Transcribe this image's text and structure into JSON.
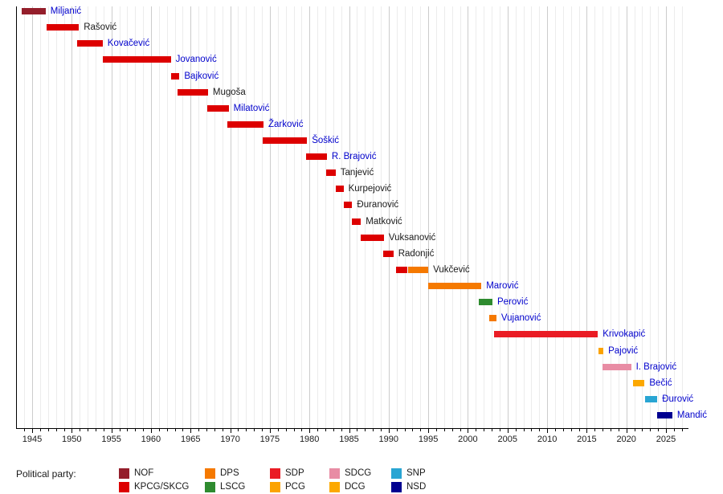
{
  "page": {
    "background": "#ffffff"
  },
  "legend": {
    "title": "Political party:",
    "columns": [
      {
        "items": [
          {
            "label": "NOF",
            "party": "NOF"
          },
          {
            "label": "KPCG/SKCG",
            "party": "KPCG/SKCG"
          }
        ]
      },
      {
        "items": [
          {
            "label": "DPS",
            "party": "DPS"
          },
          {
            "label": "LSCG",
            "party": "LSCG"
          }
        ]
      },
      {
        "items": [
          {
            "label": "SDP",
            "party": "SDP"
          },
          {
            "label": "PCG",
            "party": "PCG"
          }
        ]
      },
      {
        "items": [
          {
            "label": "SDCG",
            "party": "SDCG"
          },
          {
            "label": "DCG",
            "party": "DCG"
          }
        ]
      },
      {
        "items": [
          {
            "label": "SNP",
            "party": "SNP"
          },
          {
            "label": "NSD",
            "party": "NSD"
          }
        ]
      }
    ]
  },
  "chart_data": {
    "type": "bar",
    "subtype": "gantt-timeline",
    "title": "",
    "xlabel": "",
    "ylabel": "",
    "x_axis": {
      "min": 1943,
      "max": 2027.8,
      "major_ticks": [
        1945,
        1950,
        1955,
        1960,
        1965,
        1970,
        1975,
        1980,
        1985,
        1990,
        1995,
        2000,
        2005,
        2010,
        2015,
        2020,
        2025
      ],
      "minor_tick_interval": 1,
      "grid": true
    },
    "party_colors": {
      "NOF": "#941e2b",
      "KPCG/SKCG": "#dd0000",
      "DPS": "#f57900",
      "LSCG": "#2e8b2f",
      "SDP": "#ea1c24",
      "PCG": "#fba300",
      "SDCG": "#e88ca4",
      "DCG": "#fca800",
      "SNP": "#29a5d3",
      "NSD": "#000090"
    },
    "label_colors": {
      "blue": "#0000cc",
      "black": "#1a1a1a"
    },
    "rows": [
      {
        "name": "Miljanić",
        "label_color": "blue",
        "segments": [
          {
            "party": "NOF",
            "start": 1943.7,
            "end": 1946.7
          }
        ]
      },
      {
        "name": "Rašović",
        "label_color": "black",
        "segments": [
          {
            "party": "KPCG/SKCG",
            "start": 1946.8,
            "end": 1950.9
          }
        ]
      },
      {
        "name": "Kovačević",
        "label_color": "blue",
        "segments": [
          {
            "party": "KPCG/SKCG",
            "start": 1950.7,
            "end": 1953.9
          }
        ]
      },
      {
        "name": "Jovanović",
        "label_color": "blue",
        "segments": [
          {
            "party": "KPCG/SKCG",
            "start": 1953.9,
            "end": 1962.5
          }
        ]
      },
      {
        "name": "Bajković",
        "label_color": "blue",
        "segments": [
          {
            "party": "KPCG/SKCG",
            "start": 1962.5,
            "end": 1963.6
          }
        ]
      },
      {
        "name": "Mugoša",
        "label_color": "black",
        "segments": [
          {
            "party": "KPCG/SKCG",
            "start": 1963.3,
            "end": 1967.2
          }
        ]
      },
      {
        "name": "Milatović",
        "label_color": "blue",
        "segments": [
          {
            "party": "KPCG/SKCG",
            "start": 1967.1,
            "end": 1969.8
          }
        ]
      },
      {
        "name": "Žarković",
        "label_color": "blue",
        "segments": [
          {
            "party": "KPCG/SKCG",
            "start": 1969.6,
            "end": 1974.2
          }
        ]
      },
      {
        "name": "Šoškić",
        "label_color": "blue",
        "segments": [
          {
            "party": "KPCG/SKCG",
            "start": 1974.1,
            "end": 1979.7
          }
        ]
      },
      {
        "name": "R. Brajović",
        "label_color": "blue",
        "segments": [
          {
            "party": "KPCG/SKCG",
            "start": 1979.6,
            "end": 1982.2
          }
        ]
      },
      {
        "name": "Tanjević",
        "label_color": "black",
        "segments": [
          {
            "party": "KPCG/SKCG",
            "start": 1982.1,
            "end": 1983.3
          }
        ]
      },
      {
        "name": "Kurpejović",
        "label_color": "black",
        "segments": [
          {
            "party": "KPCG/SKCG",
            "start": 1983.3,
            "end": 1984.3
          }
        ]
      },
      {
        "name": "Đuranović",
        "label_color": "black",
        "segments": [
          {
            "party": "KPCG/SKCG",
            "start": 1984.3,
            "end": 1985.4
          }
        ]
      },
      {
        "name": "Matković",
        "label_color": "black",
        "segments": [
          {
            "party": "KPCG/SKCG",
            "start": 1985.4,
            "end": 1986.5
          }
        ]
      },
      {
        "name": "Vuksanović",
        "label_color": "black",
        "segments": [
          {
            "party": "KPCG/SKCG",
            "start": 1986.5,
            "end": 1989.4
          }
        ]
      },
      {
        "name": "Radonjić",
        "label_color": "black",
        "segments": [
          {
            "party": "KPCG/SKCG",
            "start": 1989.3,
            "end": 1990.6
          }
        ]
      },
      {
        "name": "Vukčević",
        "label_color": "black",
        "segments": [
          {
            "party": "KPCG/SKCG",
            "start": 1990.9,
            "end": 1992.4
          },
          {
            "party": "DPS",
            "start": 1992.4,
            "end": 1995.0
          }
        ]
      },
      {
        "name": "Marović",
        "label_color": "blue",
        "segments": [
          {
            "party": "DPS",
            "start": 1995.0,
            "end": 2001.7
          }
        ]
      },
      {
        "name": "Perović",
        "label_color": "blue",
        "segments": [
          {
            "party": "LSCG",
            "start": 2001.4,
            "end": 2003.1
          }
        ]
      },
      {
        "name": "Vujanović",
        "label_color": "blue",
        "segments": [
          {
            "party": "DPS",
            "start": 2002.7,
            "end": 2003.6
          }
        ]
      },
      {
        "name": "Krivokapić",
        "label_color": "blue",
        "segments": [
          {
            "party": "SDP",
            "start": 2003.3,
            "end": 2016.4
          }
        ]
      },
      {
        "name": "Pajović",
        "label_color": "blue",
        "segments": [
          {
            "party": "PCG",
            "start": 2016.5,
            "end": 2017.1
          }
        ]
      },
      {
        "name": "I. Brajović",
        "label_color": "blue",
        "segments": [
          {
            "party": "SDCG",
            "start": 2017.0,
            "end": 2020.6
          }
        ]
      },
      {
        "name": "Bečić",
        "label_color": "blue",
        "segments": [
          {
            "party": "DCG",
            "start": 2020.8,
            "end": 2022.3
          }
        ]
      },
      {
        "name": "Đurović",
        "label_color": "blue",
        "segments": [
          {
            "party": "SNP",
            "start": 2022.4,
            "end": 2023.9
          }
        ]
      },
      {
        "name": "Mandić",
        "label_color": "blue",
        "segments": [
          {
            "party": "NSD",
            "start": 2023.9,
            "end": 2025.8
          }
        ]
      }
    ]
  }
}
